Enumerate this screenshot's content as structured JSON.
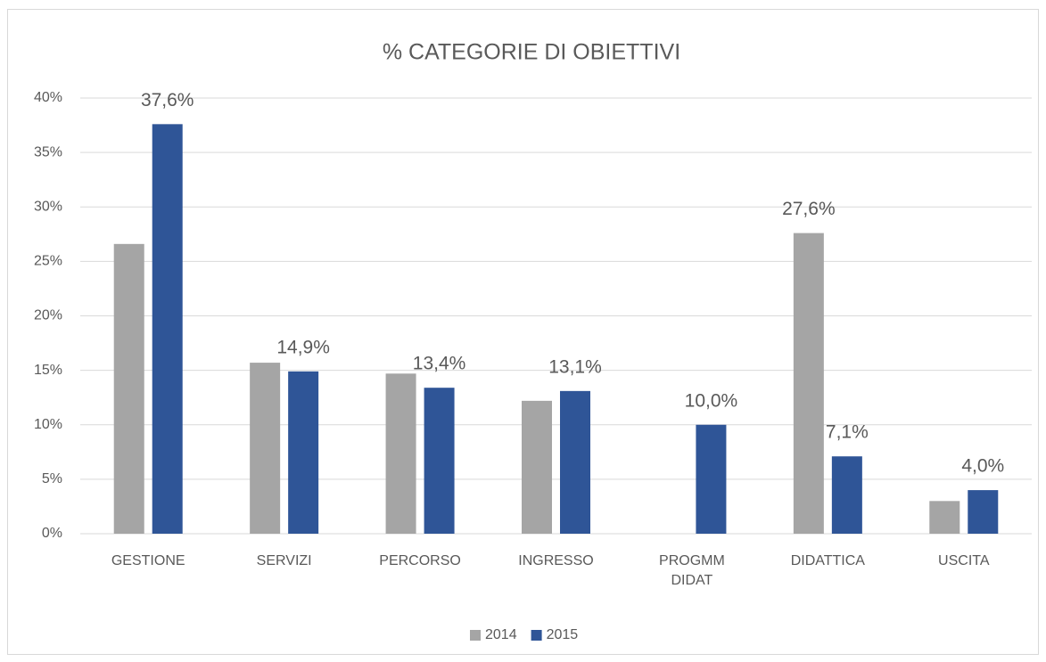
{
  "chart_data": {
    "type": "bar",
    "title": "% CATEGORIE DI OBIETTIVI",
    "categories": [
      "GESTIONE",
      "SERVIZI",
      "PERCORSO",
      "INGRESSO",
      "PROGMM DIDAT",
      "DIDATTICA",
      "USCITA"
    ],
    "series": [
      {
        "name": "2014",
        "color": "#a5a5a5",
        "values": [
          26.6,
          15.7,
          14.7,
          12.2,
          null,
          27.6,
          3.0
        ],
        "value_labels": [
          null,
          null,
          null,
          null,
          null,
          "27,6%",
          null
        ]
      },
      {
        "name": "2015",
        "color": "#2f5597",
        "values": [
          37.6,
          14.9,
          13.4,
          13.1,
          10.0,
          7.1,
          4.0
        ],
        "value_labels": [
          "37,6%",
          "14,9%",
          "13,4%",
          "13,1%",
          "10,0%",
          "7,1%",
          "4,0%"
        ]
      }
    ],
    "ylim": [
      0,
      40
    ],
    "yticks": [
      {
        "value": 0,
        "label": "0%"
      },
      {
        "value": 5,
        "label": "5%"
      },
      {
        "value": 10,
        "label": "10%"
      },
      {
        "value": 15,
        "label": "15%"
      },
      {
        "value": 20,
        "label": "20%"
      },
      {
        "value": 25,
        "label": "25%"
      },
      {
        "value": 30,
        "label": "30%"
      },
      {
        "value": 35,
        "label": "35%"
      },
      {
        "value": 40,
        "label": "40%"
      }
    ],
    "grid": true,
    "legend": "bottom"
  }
}
